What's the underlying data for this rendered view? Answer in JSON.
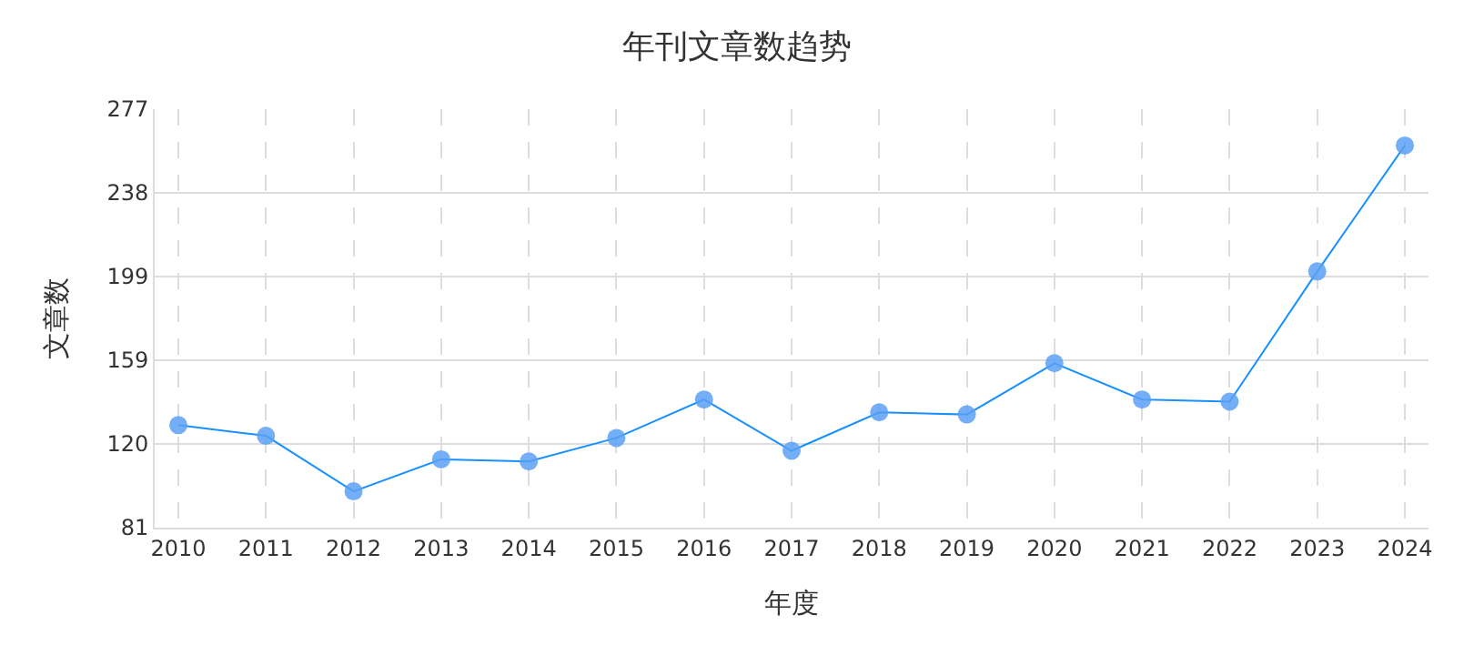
{
  "chart_data": {
    "type": "line",
    "title": "年刊文章数趋势",
    "xlabel": "年度",
    "ylabel": "文章数",
    "categories": [
      "2010",
      "2011",
      "2012",
      "2013",
      "2014",
      "2015",
      "2016",
      "2017",
      "2018",
      "2019",
      "2020",
      "2021",
      "2022",
      "2023",
      "2024"
    ],
    "series": [
      {
        "color": "#1890ff",
        "values": [
          129,
          124,
          98,
          113,
          112,
          123,
          141,
          117,
          135,
          134,
          158,
          141,
          140,
          201,
          260
        ]
      }
    ],
    "ylim": [
      81,
      277
    ],
    "yticks": [
      81,
      {
        "value": 120.2,
        "label": "120"
      },
      {
        "value": 159.4,
        "label": "159"
      },
      {
        "value": 198.6,
        "label": "199"
      },
      {
        "value": 237.8,
        "label": "238"
      },
      277
    ],
    "grid": true,
    "marker": "circle",
    "line_style": "solid",
    "legend": false
  }
}
